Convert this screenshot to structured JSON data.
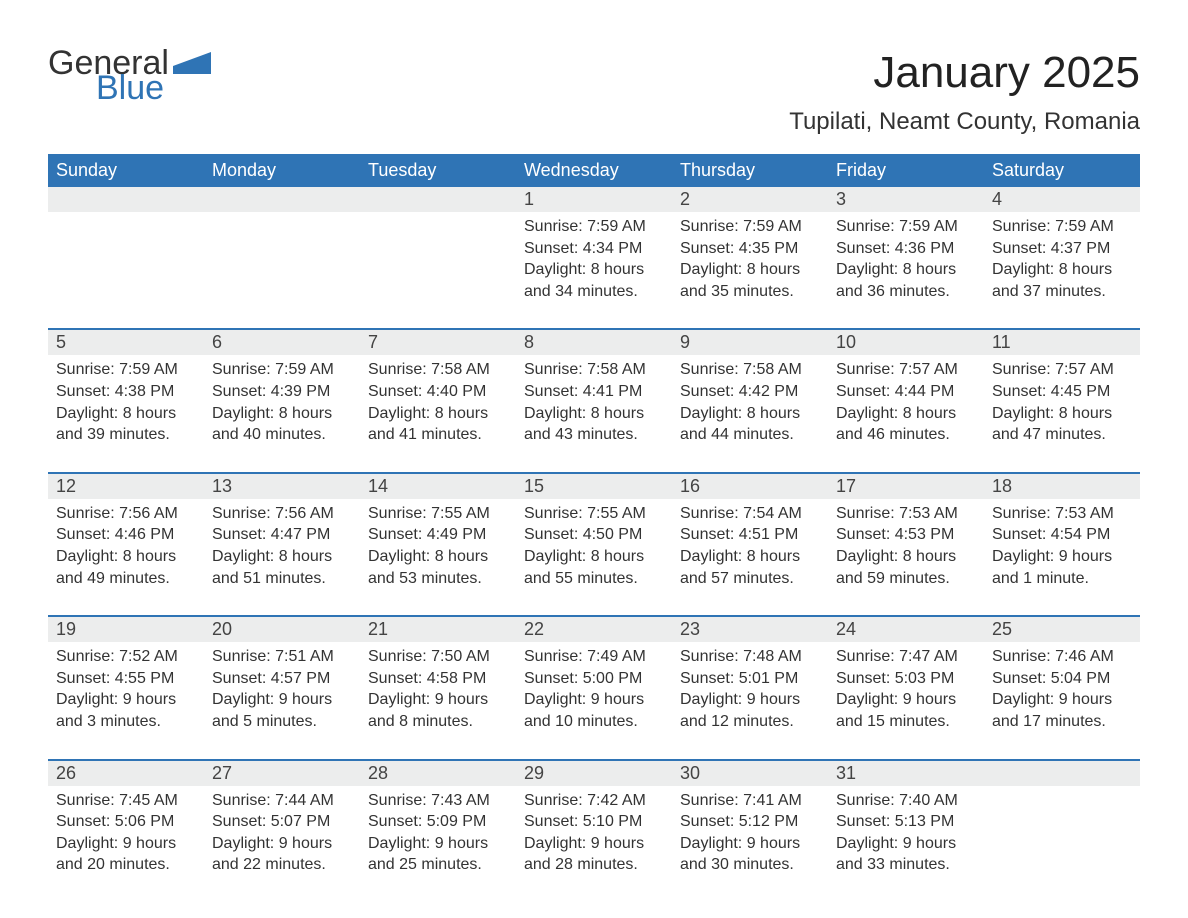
{
  "logo": {
    "text1": "General",
    "text2": "Blue",
    "flag_color": "#2f74b5"
  },
  "title": "January 2025",
  "location": "Tupilati, Neamt County, Romania",
  "colors": {
    "header_bg": "#2f74b5",
    "header_text": "#ffffff",
    "daynum_bg": "#eceded",
    "body_text": "#333333",
    "week_border": "#2f74b5",
    "page_bg": "#ffffff"
  },
  "typography": {
    "title_fontsize": 44,
    "location_fontsize": 24,
    "header_fontsize": 18,
    "daynum_fontsize": 18,
    "cell_fontsize": 16
  },
  "day_headers": [
    "Sunday",
    "Monday",
    "Tuesday",
    "Wednesday",
    "Thursday",
    "Friday",
    "Saturday"
  ],
  "weeks": [
    [
      {
        "num": "",
        "sunrise": "",
        "sunset": "",
        "daylight": ""
      },
      {
        "num": "",
        "sunrise": "",
        "sunset": "",
        "daylight": ""
      },
      {
        "num": "",
        "sunrise": "",
        "sunset": "",
        "daylight": ""
      },
      {
        "num": "1",
        "sunrise": "Sunrise: 7:59 AM",
        "sunset": "Sunset: 4:34 PM",
        "daylight": "Daylight: 8 hours and 34 minutes."
      },
      {
        "num": "2",
        "sunrise": "Sunrise: 7:59 AM",
        "sunset": "Sunset: 4:35 PM",
        "daylight": "Daylight: 8 hours and 35 minutes."
      },
      {
        "num": "3",
        "sunrise": "Sunrise: 7:59 AM",
        "sunset": "Sunset: 4:36 PM",
        "daylight": "Daylight: 8 hours and 36 minutes."
      },
      {
        "num": "4",
        "sunrise": "Sunrise: 7:59 AM",
        "sunset": "Sunset: 4:37 PM",
        "daylight": "Daylight: 8 hours and 37 minutes."
      }
    ],
    [
      {
        "num": "5",
        "sunrise": "Sunrise: 7:59 AM",
        "sunset": "Sunset: 4:38 PM",
        "daylight": "Daylight: 8 hours and 39 minutes."
      },
      {
        "num": "6",
        "sunrise": "Sunrise: 7:59 AM",
        "sunset": "Sunset: 4:39 PM",
        "daylight": "Daylight: 8 hours and 40 minutes."
      },
      {
        "num": "7",
        "sunrise": "Sunrise: 7:58 AM",
        "sunset": "Sunset: 4:40 PM",
        "daylight": "Daylight: 8 hours and 41 minutes."
      },
      {
        "num": "8",
        "sunrise": "Sunrise: 7:58 AM",
        "sunset": "Sunset: 4:41 PM",
        "daylight": "Daylight: 8 hours and 43 minutes."
      },
      {
        "num": "9",
        "sunrise": "Sunrise: 7:58 AM",
        "sunset": "Sunset: 4:42 PM",
        "daylight": "Daylight: 8 hours and 44 minutes."
      },
      {
        "num": "10",
        "sunrise": "Sunrise: 7:57 AM",
        "sunset": "Sunset: 4:44 PM",
        "daylight": "Daylight: 8 hours and 46 minutes."
      },
      {
        "num": "11",
        "sunrise": "Sunrise: 7:57 AM",
        "sunset": "Sunset: 4:45 PM",
        "daylight": "Daylight: 8 hours and 47 minutes."
      }
    ],
    [
      {
        "num": "12",
        "sunrise": "Sunrise: 7:56 AM",
        "sunset": "Sunset: 4:46 PM",
        "daylight": "Daylight: 8 hours and 49 minutes."
      },
      {
        "num": "13",
        "sunrise": "Sunrise: 7:56 AM",
        "sunset": "Sunset: 4:47 PM",
        "daylight": "Daylight: 8 hours and 51 minutes."
      },
      {
        "num": "14",
        "sunrise": "Sunrise: 7:55 AM",
        "sunset": "Sunset: 4:49 PM",
        "daylight": "Daylight: 8 hours and 53 minutes."
      },
      {
        "num": "15",
        "sunrise": "Sunrise: 7:55 AM",
        "sunset": "Sunset: 4:50 PM",
        "daylight": "Daylight: 8 hours and 55 minutes."
      },
      {
        "num": "16",
        "sunrise": "Sunrise: 7:54 AM",
        "sunset": "Sunset: 4:51 PM",
        "daylight": "Daylight: 8 hours and 57 minutes."
      },
      {
        "num": "17",
        "sunrise": "Sunrise: 7:53 AM",
        "sunset": "Sunset: 4:53 PM",
        "daylight": "Daylight: 8 hours and 59 minutes."
      },
      {
        "num": "18",
        "sunrise": "Sunrise: 7:53 AM",
        "sunset": "Sunset: 4:54 PM",
        "daylight": "Daylight: 9 hours and 1 minute."
      }
    ],
    [
      {
        "num": "19",
        "sunrise": "Sunrise: 7:52 AM",
        "sunset": "Sunset: 4:55 PM",
        "daylight": "Daylight: 9 hours and 3 minutes."
      },
      {
        "num": "20",
        "sunrise": "Sunrise: 7:51 AM",
        "sunset": "Sunset: 4:57 PM",
        "daylight": "Daylight: 9 hours and 5 minutes."
      },
      {
        "num": "21",
        "sunrise": "Sunrise: 7:50 AM",
        "sunset": "Sunset: 4:58 PM",
        "daylight": "Daylight: 9 hours and 8 minutes."
      },
      {
        "num": "22",
        "sunrise": "Sunrise: 7:49 AM",
        "sunset": "Sunset: 5:00 PM",
        "daylight": "Daylight: 9 hours and 10 minutes."
      },
      {
        "num": "23",
        "sunrise": "Sunrise: 7:48 AM",
        "sunset": "Sunset: 5:01 PM",
        "daylight": "Daylight: 9 hours and 12 minutes."
      },
      {
        "num": "24",
        "sunrise": "Sunrise: 7:47 AM",
        "sunset": "Sunset: 5:03 PM",
        "daylight": "Daylight: 9 hours and 15 minutes."
      },
      {
        "num": "25",
        "sunrise": "Sunrise: 7:46 AM",
        "sunset": "Sunset: 5:04 PM",
        "daylight": "Daylight: 9 hours and 17 minutes."
      }
    ],
    [
      {
        "num": "26",
        "sunrise": "Sunrise: 7:45 AM",
        "sunset": "Sunset: 5:06 PM",
        "daylight": "Daylight: 9 hours and 20 minutes."
      },
      {
        "num": "27",
        "sunrise": "Sunrise: 7:44 AM",
        "sunset": "Sunset: 5:07 PM",
        "daylight": "Daylight: 9 hours and 22 minutes."
      },
      {
        "num": "28",
        "sunrise": "Sunrise: 7:43 AM",
        "sunset": "Sunset: 5:09 PM",
        "daylight": "Daylight: 9 hours and 25 minutes."
      },
      {
        "num": "29",
        "sunrise": "Sunrise: 7:42 AM",
        "sunset": "Sunset: 5:10 PM",
        "daylight": "Daylight: 9 hours and 28 minutes."
      },
      {
        "num": "30",
        "sunrise": "Sunrise: 7:41 AM",
        "sunset": "Sunset: 5:12 PM",
        "daylight": "Daylight: 9 hours and 30 minutes."
      },
      {
        "num": "31",
        "sunrise": "Sunrise: 7:40 AM",
        "sunset": "Sunset: 5:13 PM",
        "daylight": "Daylight: 9 hours and 33 minutes."
      },
      {
        "num": "",
        "sunrise": "",
        "sunset": "",
        "daylight": ""
      }
    ]
  ]
}
